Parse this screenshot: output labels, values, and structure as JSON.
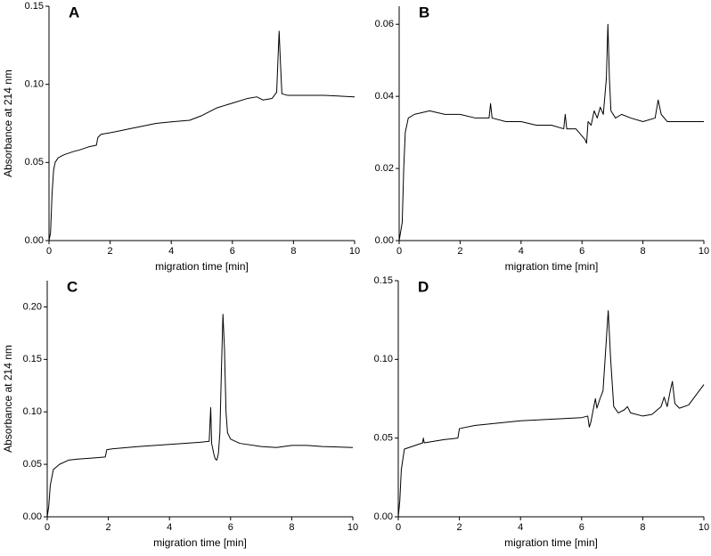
{
  "chart_data": [
    {
      "type": "line",
      "panel_label": "A",
      "x_label": "migration time [min]",
      "y_label": "Absorbance at 214 nm",
      "color": "#000000",
      "xlim": [
        0,
        10
      ],
      "xticks": [
        0,
        2,
        4,
        6,
        8,
        10
      ],
      "ylim": [
        0,
        0.15
      ],
      "yticks": [
        {
          "value": 0,
          "label": "0.00"
        },
        0.05,
        {
          "value": 0.1,
          "label": "0.10"
        },
        0.15
      ],
      "x": [
        0,
        0.05,
        0.1,
        0.15,
        0.2,
        0.3,
        0.5,
        0.8,
        1.0,
        1.3,
        1.55,
        1.6,
        1.7,
        2.0,
        2.5,
        3,
        3.5,
        4,
        4.6,
        5,
        5.5,
        6,
        6.5,
        6.8,
        7,
        7.3,
        7.45,
        7.5,
        7.53,
        7.57,
        7.62,
        7.8,
        8.5,
        9,
        10
      ],
      "values": [
        0,
        0.005,
        0.03,
        0.045,
        0.05,
        0.053,
        0.055,
        0.057,
        0.058,
        0.06,
        0.061,
        0.066,
        0.068,
        0.069,
        0.071,
        0.073,
        0.075,
        0.076,
        0.077,
        0.08,
        0.085,
        0.088,
        0.091,
        0.092,
        0.09,
        0.091,
        0.095,
        0.12,
        0.134,
        0.115,
        0.094,
        0.093,
        0.093,
        0.093,
        0.092
      ]
    },
    {
      "type": "line",
      "panel_label": "B",
      "x_label": "migration time [min]",
      "color": "#000000",
      "xlim": [
        0,
        10
      ],
      "xticks": [
        0,
        2,
        4,
        6,
        8,
        10
      ],
      "ylim": [
        0,
        0.065
      ],
      "yticks": [
        {
          "value": 0,
          "label": "0.00"
        },
        0.02,
        0.04,
        0.06
      ],
      "x": [
        0,
        0.1,
        0.15,
        0.2,
        0.3,
        0.5,
        1,
        1.5,
        2,
        2.5,
        2.95,
        3,
        3.05,
        3.5,
        4,
        4.5,
        5,
        5.4,
        5.45,
        5.5,
        5.8,
        6.1,
        6.15,
        6.2,
        6.3,
        6.4,
        6.5,
        6.6,
        6.7,
        6.8,
        6.85,
        6.9,
        6.95,
        7.1,
        7.3,
        7.6,
        8,
        8.4,
        8.5,
        8.6,
        8.8,
        9,
        9.5,
        10
      ],
      "values": [
        0,
        0.005,
        0.02,
        0.03,
        0.034,
        0.035,
        0.036,
        0.035,
        0.035,
        0.034,
        0.034,
        0.038,
        0.034,
        0.033,
        0.033,
        0.032,
        0.032,
        0.031,
        0.035,
        0.031,
        0.031,
        0.028,
        0.027,
        0.033,
        0.032,
        0.036,
        0.034,
        0.037,
        0.035,
        0.045,
        0.06,
        0.045,
        0.036,
        0.034,
        0.035,
        0.034,
        0.033,
        0.034,
        0.039,
        0.035,
        0.033,
        0.033,
        0.033,
        0.033
      ]
    },
    {
      "type": "line",
      "panel_label": "C",
      "x_label": "migration time [min]",
      "y_label": "Absorbance at 214 nm",
      "color": "#000000",
      "xlim": [
        0,
        10
      ],
      "xticks": [
        0,
        2,
        4,
        6,
        8,
        10
      ],
      "ylim": [
        0,
        0.225
      ],
      "yticks": [
        {
          "value": 0,
          "label": "0.00"
        },
        0.05,
        {
          "value": 0.1,
          "label": "0.10"
        },
        0.15,
        {
          "value": 0.2,
          "label": "0.20"
        }
      ],
      "x": [
        0,
        0.05,
        0.1,
        0.2,
        0.4,
        0.7,
        1,
        1.5,
        1.9,
        1.95,
        2.2,
        3,
        4,
        5,
        5.3,
        5.35,
        5.38,
        5.45,
        5.5,
        5.55,
        5.6,
        5.65,
        5.7,
        5.75,
        5.8,
        5.85,
        5.9,
        6,
        6.3,
        7,
        7.5,
        8,
        8.5,
        9,
        10
      ],
      "values": [
        0,
        0.01,
        0.03,
        0.045,
        0.05,
        0.054,
        0.055,
        0.056,
        0.057,
        0.064,
        0.065,
        0.067,
        0.069,
        0.071,
        0.072,
        0.104,
        0.07,
        0.06,
        0.055,
        0.054,
        0.06,
        0.08,
        0.14,
        0.193,
        0.16,
        0.1,
        0.08,
        0.074,
        0.07,
        0.067,
        0.066,
        0.068,
        0.068,
        0.067,
        0.066
      ]
    },
    {
      "type": "line",
      "panel_label": "D",
      "x_label": "migration time [min]",
      "color": "#000000",
      "xlim": [
        0,
        10
      ],
      "xticks": [
        0,
        2,
        4,
        6,
        8,
        10
      ],
      "ylim": [
        0,
        0.15
      ],
      "yticks": [
        {
          "value": 0,
          "label": "0.00"
        },
        0.05,
        {
          "value": 0.1,
          "label": "0.10"
        },
        0.15
      ],
      "x": [
        0,
        0.05,
        0.1,
        0.2,
        0.5,
        0.8,
        0.82,
        0.85,
        1.5,
        1.95,
        2,
        2.5,
        3,
        4,
        5,
        6,
        6.2,
        6.25,
        6.3,
        6.4,
        6.45,
        6.5,
        6.6,
        6.7,
        6.8,
        6.87,
        6.95,
        7.05,
        7.2,
        7.4,
        7.5,
        7.6,
        8,
        8.3,
        8.6,
        8.7,
        8.8,
        8.9,
        8.97,
        9.05,
        9.2,
        9.5,
        10
      ],
      "values": [
        0,
        0.01,
        0.03,
        0.043,
        0.045,
        0.047,
        0.05,
        0.047,
        0.049,
        0.05,
        0.056,
        0.058,
        0.059,
        0.061,
        0.062,
        0.063,
        0.064,
        0.057,
        0.06,
        0.07,
        0.075,
        0.069,
        0.075,
        0.08,
        0.11,
        0.131,
        0.1,
        0.07,
        0.066,
        0.068,
        0.07,
        0.066,
        0.064,
        0.065,
        0.07,
        0.076,
        0.07,
        0.08,
        0.086,
        0.072,
        0.069,
        0.071,
        0.084
      ]
    }
  ]
}
